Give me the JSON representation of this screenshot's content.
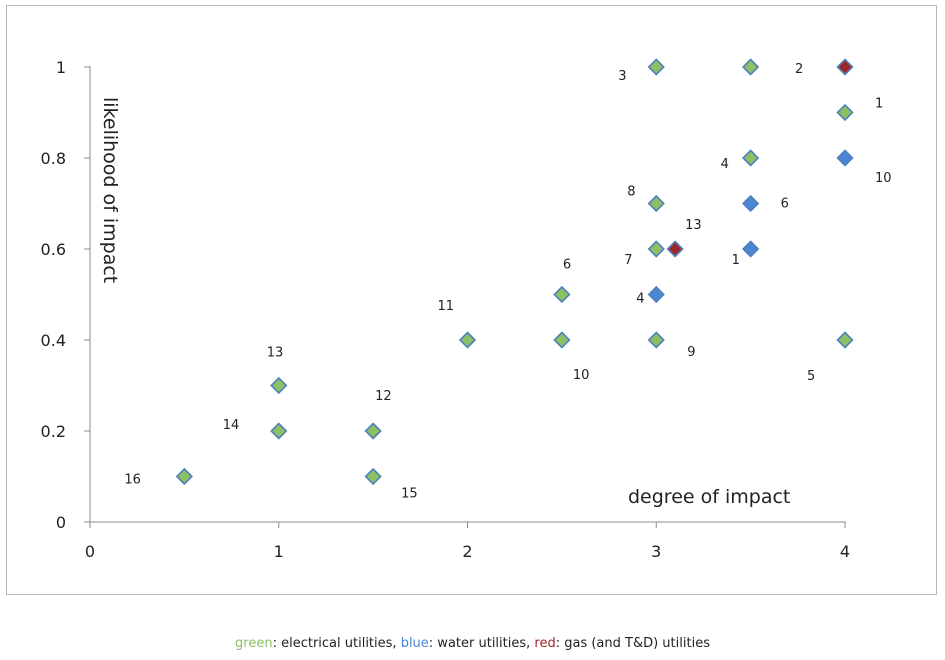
{
  "chart_data": {
    "type": "scatter",
    "xlabel": "degree of impact",
    "ylabel": "likelihood of impact",
    "xlim": [
      0,
      4
    ],
    "ylim": [
      0,
      1
    ],
    "xticks": [
      "0",
      "1",
      "2",
      "3",
      "4"
    ],
    "yticks": [
      "0",
      "0.2",
      "0.4",
      "0.6",
      "0.8",
      "1"
    ],
    "grid": false,
    "colors": {
      "green": "#8dc063",
      "blue": "#4a86d4",
      "red": "#a0262b",
      "marker_edge": "#4f81bd"
    },
    "series": [
      {
        "color_key": "green",
        "points": [
          {
            "x": 0.5,
            "y": 0.1,
            "label": "16"
          },
          {
            "x": 1.0,
            "y": 0.2,
            "label": "14"
          },
          {
            "x": 1.0,
            "y": 0.3,
            "label": "13"
          },
          {
            "x": 1.5,
            "y": 0.1,
            "label": "15"
          },
          {
            "x": 1.5,
            "y": 0.2,
            "label": "12"
          },
          {
            "x": 2.0,
            "y": 0.4,
            "label": "11"
          },
          {
            "x": 2.5,
            "y": 0.4,
            "label": "10"
          },
          {
            "x": 2.5,
            "y": 0.5,
            "label": "6"
          },
          {
            "x": 3.0,
            "y": 0.4,
            "label": "9"
          },
          {
            "x": 3.0,
            "y": 0.6,
            "label": "7"
          },
          {
            "x": 3.0,
            "y": 0.7,
            "label": "8"
          },
          {
            "x": 3.0,
            "y": 1.0,
            "label": "3"
          },
          {
            "x": 3.5,
            "y": 0.8,
            "label": "4"
          },
          {
            "x": 3.5,
            "y": 1.0,
            "label": ""
          },
          {
            "x": 4.0,
            "y": 0.4,
            "label": "5"
          },
          {
            "x": 4.0,
            "y": 0.9,
            "label": "1"
          }
        ]
      },
      {
        "color_key": "blue",
        "points": [
          {
            "x": 3.0,
            "y": 0.5,
            "label": "4"
          },
          {
            "x": 3.5,
            "y": 0.6,
            "label": "1"
          },
          {
            "x": 3.5,
            "y": 0.7,
            "label": "6"
          },
          {
            "x": 4.0,
            "y": 0.8,
            "label": "10"
          }
        ]
      },
      {
        "color_key": "red",
        "points": [
          {
            "x": 3.1,
            "y": 0.6,
            "label": "13"
          },
          {
            "x": 4.0,
            "y": 1.0,
            "label": "2"
          }
        ]
      }
    ]
  },
  "legend": {
    "green_word": "green",
    "green_text": ": electrical utilities, ",
    "blue_word": "blue",
    "blue_text": ": water utilities, ",
    "red_word": "red",
    "red_text": ": gas (and T&D) utilities"
  }
}
